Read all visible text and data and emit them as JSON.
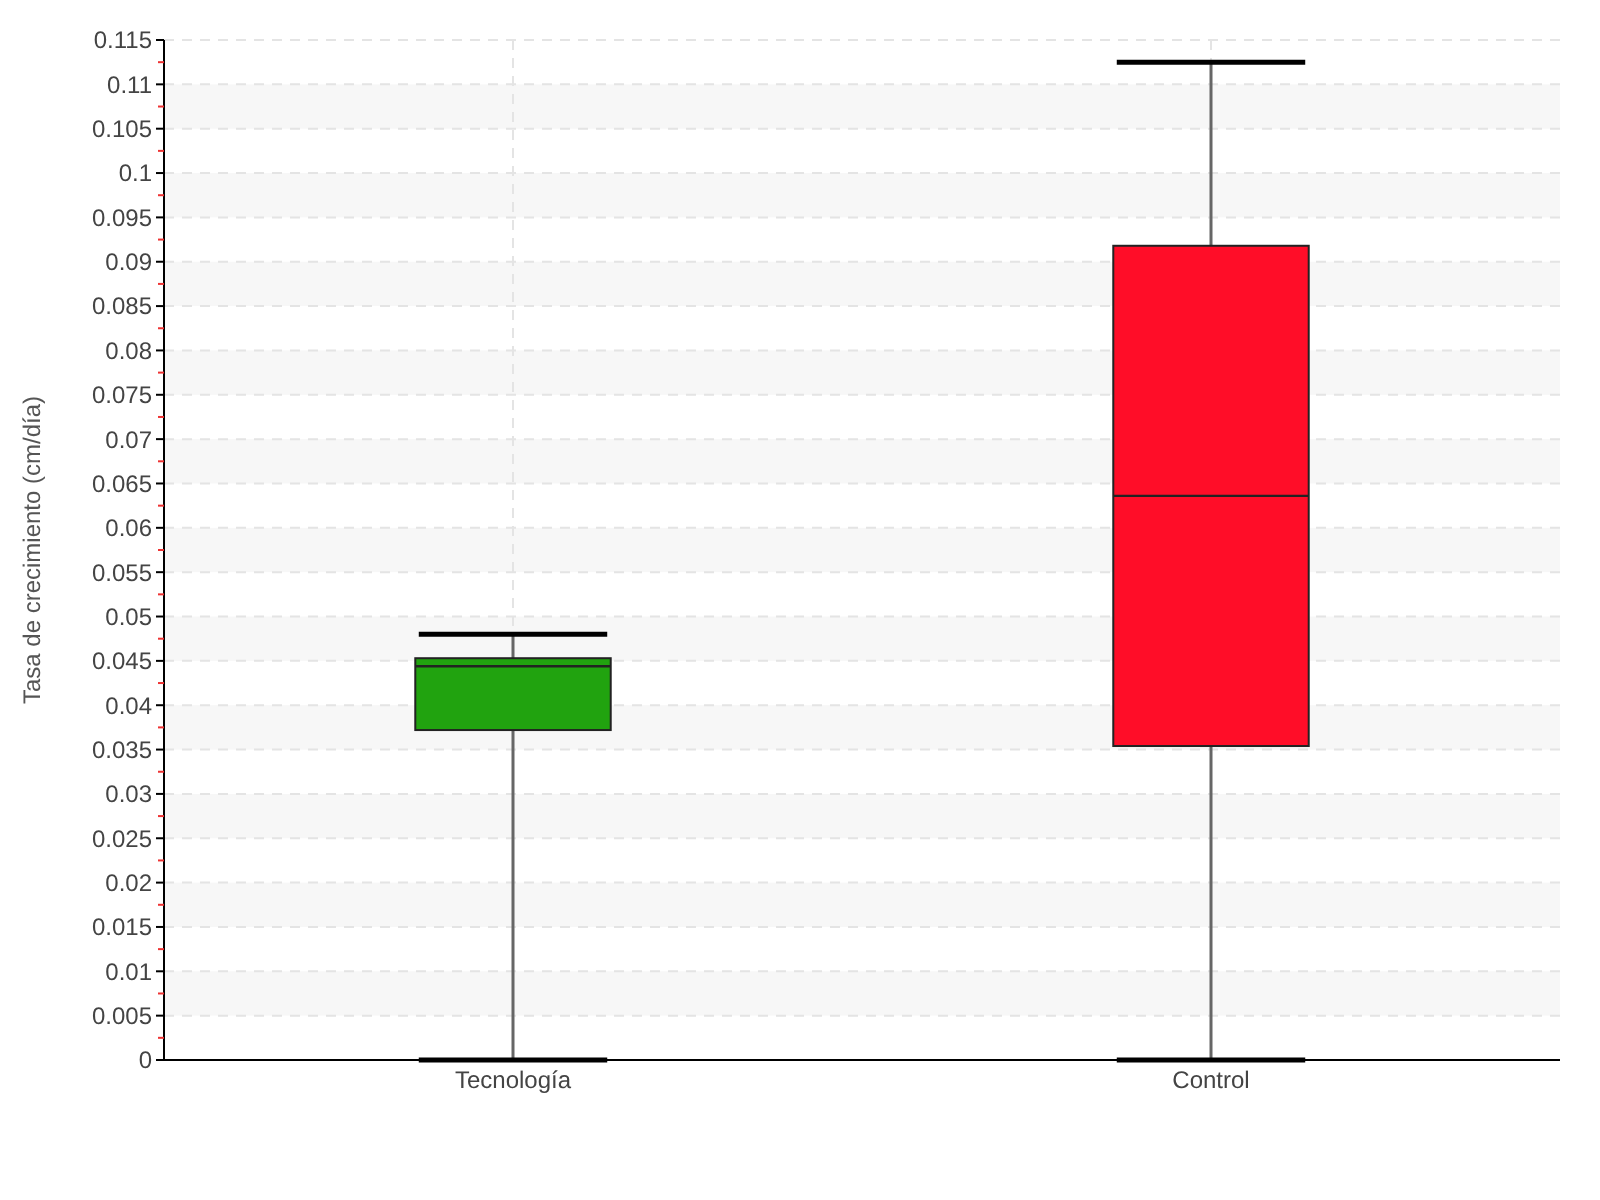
{
  "chart_data": {
    "type": "box",
    "ylabel": "Tasa de crecimiento (cm/día)",
    "categories": [
      "Tecnología",
      "Control"
    ],
    "colors": [
      "#21a30f",
      "#ff0d28"
    ],
    "boxes": [
      {
        "low": 0,
        "q1": 0.0372,
        "median": 0.0444,
        "q3": 0.0453,
        "high": 0.048
      },
      {
        "low": 0,
        "q1": 0.0354,
        "median": 0.0636,
        "q3": 0.0918,
        "high": 0.1125
      }
    ],
    "ylim": [
      0,
      0.115
    ],
    "yticks": [
      0,
      0.005,
      0.01,
      0.015,
      0.02,
      0.025,
      0.03,
      0.035,
      0.04,
      0.045,
      0.05,
      0.055,
      0.06,
      0.065,
      0.07,
      0.075,
      0.08,
      0.085,
      0.09,
      0.095,
      0.1,
      0.105,
      0.11,
      0.115
    ],
    "grid": true
  }
}
